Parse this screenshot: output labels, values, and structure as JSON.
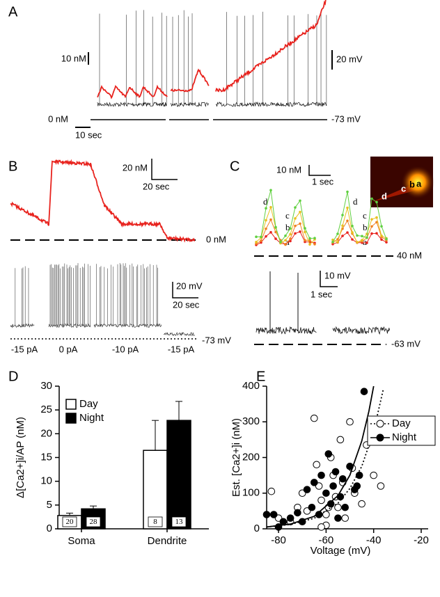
{
  "panel_labels": [
    "A",
    "B",
    "C",
    "D",
    "E"
  ],
  "panel_a": {
    "scale_ca": "10 nM",
    "scale_v": "20 mV",
    "zero_ca": "0 nM",
    "rest_v": "-73 mV",
    "scale_t": "10 sec"
  },
  "panel_b": {
    "scale_ca": "20 nM",
    "scale_t_ca": "20 sec",
    "zero_ca": "0 nM",
    "scale_v": "20 mV",
    "scale_t_v": "20 sec",
    "rest_v": "-73 mV",
    "steps": [
      "-15 pA",
      "0 pA",
      "-10 pA",
      "-15 pA"
    ]
  },
  "panel_c": {
    "scale_ca": "10 nM",
    "scale_t_ca": "1 sec",
    "base_ca": "40 nM",
    "scale_v": "10 mV",
    "scale_t_v": "1 sec",
    "rest_v": "-63 mV",
    "trace_labels": [
      "d",
      "c",
      "b",
      "a"
    ],
    "inset_labels": [
      "d",
      "c",
      "b",
      "a"
    ]
  },
  "chart_data": [
    {
      "type": "bar",
      "ylabel": "Δ[Ca2+]i/AP (nM)",
      "categories": [
        "Soma",
        "Dendrite"
      ],
      "series": [
        {
          "name": "Day",
          "color": "#ffffff",
          "values": [
            2.8,
            16.5
          ],
          "errors": [
            0.5,
            6.3
          ],
          "n": [
            20,
            8
          ]
        },
        {
          "name": "Night",
          "color": "#000000",
          "values": [
            4.2,
            22.8
          ],
          "errors": [
            0.6,
            4.0
          ],
          "n": [
            28,
            13
          ]
        }
      ],
      "ylim": [
        0,
        30
      ],
      "yticks": [
        0,
        5,
        10,
        15,
        20,
        25,
        30
      ],
      "legend": "top-left"
    },
    {
      "type": "scatter",
      "xlabel": "Voltage (mV)",
      "ylabel": "Est. [Ca2+]i (nM)",
      "series": [
        {
          "name": "Day",
          "color": "#000000",
          "marker": "open",
          "line": "dotted",
          "x": [
            -83,
            -80,
            -75,
            -72,
            -70,
            -68,
            -65,
            -64,
            -63,
            -62,
            -60,
            -60,
            -58,
            -57,
            -56,
            -55,
            -54,
            -53,
            -52,
            -50,
            -49,
            -48,
            -45,
            -43,
            -40,
            -37,
            -62,
            -59
          ],
          "values": [
            105,
            30,
            20,
            60,
            100,
            50,
            310,
            180,
            120,
            80,
            40,
            10,
            200,
            150,
            90,
            60,
            250,
            130,
            30,
            300,
            170,
            100,
            70,
            235,
            150,
            120,
            5,
            60
          ],
          "fit_x": [
            -85,
            -75,
            -65,
            -55,
            -50,
            -45,
            -40,
            -36
          ],
          "fit_values": [
            5,
            12.2,
            29.6,
            72,
            113,
            175,
            273,
            390
          ]
        },
        {
          "name": "Night",
          "color": "#000000",
          "marker": "filled",
          "line": "solid",
          "x": [
            -85,
            -82,
            -80,
            -78,
            -75,
            -72,
            -70,
            -68,
            -66,
            -65,
            -63,
            -62,
            -60,
            -59,
            -58,
            -57,
            -56,
            -55,
            -54,
            -53,
            -52,
            -50,
            -48,
            -47,
            -46,
            -44
          ],
          "values": [
            40,
            40,
            5,
            20,
            30,
            45,
            20,
            110,
            60,
            130,
            40,
            150,
            100,
            210,
            70,
            120,
            160,
            30,
            90,
            140,
            60,
            175,
            110,
            120,
            150,
            385
          ],
          "fit_x": [
            -85,
            -75,
            -65,
            -55,
            -50,
            -45,
            -42,
            -40
          ],
          "fit_values": [
            5,
            13.2,
            35,
            93,
            150,
            246,
            330,
            400
          ]
        }
      ],
      "xlim": [
        -85,
        -20
      ],
      "xticks": [
        -80,
        -60,
        -40,
        -20
      ],
      "ylim": [
        0,
        400
      ],
      "yticks": [
        0,
        100,
        200,
        300,
        400
      ],
      "legend": "right"
    }
  ]
}
